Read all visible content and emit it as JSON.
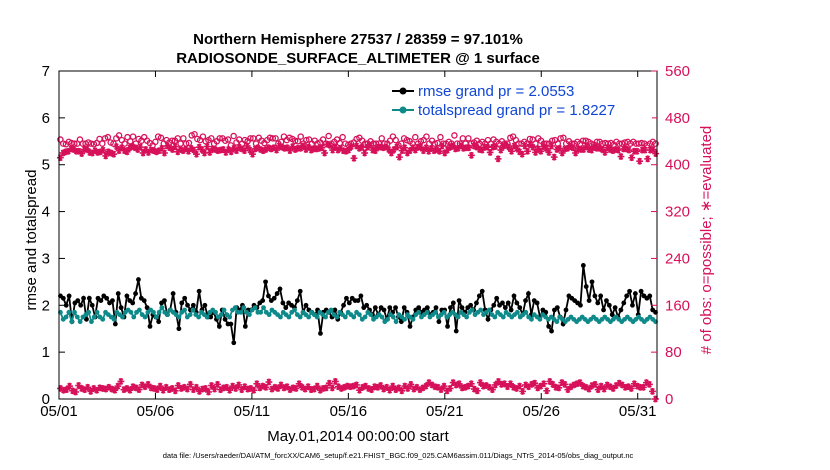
{
  "colors": {
    "rmse": "#000000",
    "spread": "#0f8a8a",
    "obs": "#d6115a",
    "legend_text": "#1046d6",
    "background": "#ffffff"
  },
  "chart_data": {
    "type": "line",
    "title_line1": "Northern Hemisphere 27537 / 28359 = 97.101%",
    "title_line2": "RADIOSONDE_SURFACE_ALTIMETER @ 1 surface",
    "xlabel": "May.01,2014 00:00:00 start",
    "ylabel_left": "rmse and totalspread",
    "ylabel_right": "# of obs: o=possible; ∗=evaluated",
    "footer": "data file: /Users/raeder/DAI/ATM_forcXX/CAM6_setup/f.e21.FHIST_BGC.f09_025.CAM6assim.011/Diags_NTrS_2014-05/obs_diag_output.nc",
    "x_tick_labels": [
      "05/01",
      "05/06",
      "05/11",
      "05/16",
      "05/21",
      "05/26",
      "05/31"
    ],
    "x_tick_days": [
      1,
      6,
      11,
      16,
      21,
      26,
      31
    ],
    "xlim": [
      1,
      32
    ],
    "ylim_left": [
      0,
      7
    ],
    "yticks_left": [
      "0",
      "1",
      "2",
      "3",
      "4",
      "5",
      "6",
      "7"
    ],
    "ylim_right": [
      0,
      560
    ],
    "yticks_right": [
      "0",
      "80",
      "160",
      "240",
      "320",
      "400",
      "480",
      "560"
    ],
    "legend": {
      "location": "top-right",
      "entries": [
        "rmse grand pr = 2.0553",
        "totalspread grand pr = 1.8227"
      ]
    },
    "series": [
      {
        "name": "rmse",
        "axis": "left",
        "values": [
          2.2,
          2.15,
          2.0,
          2.2,
          1.65,
          2.05,
          2.1,
          2.0,
          2.15,
          1.7,
          2.15,
          2.0,
          1.75,
          2.15,
          2.1,
          2.2,
          2.15,
          2.05,
          2.1,
          1.6,
          2.25,
          1.95,
          1.75,
          2.2,
          2.1,
          2.05,
          2.25,
          2.55,
          2.15,
          2.1,
          1.95,
          1.55,
          1.8,
          1.75,
          1.65,
          2.05,
          2.1,
          1.8,
          1.9,
          2.25,
          1.85,
          1.5,
          2.05,
          2.15,
          2.0,
          1.9,
          2.0,
          1.85,
          2.3,
          1.9,
          2.0,
          1.75,
          1.75,
          1.85,
          1.7,
          1.55,
          1.9,
          1.7,
          1.6,
          1.6,
          1.2,
          1.95,
          1.9,
          2.0,
          1.55,
          1.9,
          1.9,
          2.0,
          1.95,
          2.05,
          2.1,
          2.5,
          2.2,
          2.1,
          2.15,
          2.25,
          2.35,
          2.05,
          1.95,
          2.05,
          2.0,
          1.95,
          2.1,
          2.3,
          1.85,
          2.0,
          1.9,
          1.85,
          1.8,
          1.9,
          1.4,
          1.85,
          1.9,
          1.85,
          1.75,
          1.9,
          1.7,
          1.85,
          2.0,
          2.15,
          2.05,
          2.15,
          2.1,
          2.1,
          2.2,
          1.95,
          2.0,
          1.9,
          1.8,
          1.95,
          1.8,
          1.95,
          1.9,
          1.7,
          1.95,
          1.85,
          1.95,
          1.75,
          1.65,
          1.95,
          1.85,
          1.55,
          1.75,
          1.9,
          1.95,
          1.85,
          1.9,
          1.95,
          1.8,
          1.85,
          1.95,
          1.65,
          1.9,
          1.9,
          1.55,
          1.95,
          2.05,
          1.45,
          2.1,
          1.95,
          1.85,
          1.95,
          2.0,
          1.9,
          2.05,
          2.2,
          2.3,
          1.9,
          1.7,
          1.9,
          2.0,
          2.15,
          2.0,
          2.05,
          1.95,
          2.05,
          1.9,
          2.2,
          2.05,
          1.95,
          1.8,
          2.1,
          2.25,
          1.8,
          2.1,
          2.05,
          1.75,
          1.9,
          1.85,
          1.55,
          1.45,
          1.9,
          1.95,
          1.75,
          1.6,
          1.9,
          2.2,
          2.15,
          2.1,
          2.05,
          2.0,
          2.85,
          2.4,
          2.1,
          2.5,
          2.2,
          2.05,
          2.2,
          1.9,
          2.1,
          2.0,
          1.8,
          1.95,
          1.75,
          1.9,
          2.05,
          2.2,
          2.3,
          2.0,
          2.25,
          1.8,
          2.3,
          2.2,
          2.15,
          2.2,
          1.9,
          1.85
        ],
        "marker": "filled-circle"
      },
      {
        "name": "totalspread",
        "axis": "left",
        "values": [
          1.85,
          1.7,
          1.75,
          1.85,
          1.65,
          1.85,
          1.75,
          1.65,
          1.75,
          1.8,
          1.85,
          1.65,
          1.75,
          1.85,
          1.75,
          1.7,
          1.85,
          1.8,
          1.75,
          1.7,
          1.85,
          1.8,
          1.75,
          1.85,
          1.9,
          1.85,
          1.75,
          1.85,
          1.9,
          1.8,
          1.75,
          1.85,
          1.9,
          1.85,
          1.75,
          1.85,
          1.95,
          1.85,
          1.8,
          1.9,
          1.85,
          1.8,
          1.75,
          1.85,
          1.9,
          1.75,
          1.8,
          1.9,
          1.8,
          1.75,
          1.85,
          1.8,
          1.75,
          1.85,
          1.9,
          1.85,
          1.75,
          1.8,
          1.9,
          1.8,
          1.75,
          1.9,
          1.95,
          1.85,
          1.85,
          1.95,
          1.85,
          1.8,
          1.9,
          1.95,
          1.85,
          1.85,
          1.95,
          1.85,
          1.8,
          1.9,
          1.85,
          1.8,
          1.75,
          1.85,
          1.8,
          1.75,
          1.85,
          1.9,
          1.8,
          1.75,
          1.85,
          1.8,
          1.75,
          1.85,
          1.8,
          1.75,
          1.85,
          1.8,
          1.75,
          1.85,
          1.9,
          1.8,
          1.75,
          1.85,
          1.8,
          1.75,
          1.85,
          1.8,
          1.75,
          1.85,
          1.8,
          1.7,
          1.75,
          1.85,
          1.8,
          1.7,
          1.75,
          1.8,
          1.75,
          1.65,
          1.7,
          1.8,
          1.75,
          1.65,
          1.8,
          1.75,
          1.7,
          1.8,
          1.75,
          1.7,
          1.8,
          1.85,
          1.75,
          1.8,
          1.85,
          1.75,
          1.8,
          1.85,
          1.75,
          1.8,
          1.85,
          1.75,
          1.8,
          1.85,
          1.8,
          1.75,
          1.85,
          1.8,
          1.75,
          1.85,
          1.9,
          1.8,
          1.85,
          1.9,
          1.8,
          1.85,
          1.9,
          1.8,
          1.75,
          1.85,
          1.8,
          1.75,
          1.85,
          1.8,
          1.75,
          1.8,
          1.85,
          1.75,
          1.8,
          1.85,
          1.75,
          1.7,
          1.8,
          1.75,
          1.7,
          1.8,
          1.75,
          1.7,
          1.75,
          1.7,
          1.65,
          1.75,
          1.7,
          1.65,
          1.7,
          1.75,
          1.7,
          1.65,
          1.7,
          1.75,
          1.7,
          1.65,
          1.7,
          1.75,
          1.7,
          1.65,
          1.7,
          1.75,
          1.7,
          1.65,
          1.7,
          1.75,
          1.7,
          1.65,
          1.7,
          1.75,
          1.7,
          1.65,
          1.7,
          1.75,
          1.7,
          1.65,
          1.7,
          1.75,
          1.7,
          1.65
        ],
        "marker": "filled-circle"
      },
      {
        "name": "obs possible",
        "axis": "right",
        "values": [
          443,
          436,
          435,
          439,
          437,
          436,
          436,
          443,
          436,
          436,
          438,
          436,
          435,
          437,
          444,
          436,
          445,
          447,
          438,
          436,
          445,
          450,
          442,
          436,
          447,
          440,
          448,
          436,
          444,
          441,
          447,
          441,
          437,
          433,
          439,
          448,
          446,
          436,
          442,
          438,
          441,
          441,
          445,
          436,
          445,
          436,
          437,
          450,
          452,
          444,
          442,
          448,
          440,
          442,
          445,
          436,
          440,
          445,
          445,
          441,
          443,
          433,
          449,
          438,
          443,
          436,
          442,
          440,
          445,
          445,
          436,
          446,
          441,
          437,
          442,
          446,
          445,
          445,
          436,
          439,
          448,
          442,
          446,
          444,
          441,
          440,
          448,
          436,
          442,
          443,
          436,
          441,
          436,
          438,
          443,
          436,
          449,
          436,
          439,
          443,
          437,
          447,
          436,
          434,
          436,
          438,
          444,
          446,
          441,
          436,
          436,
          440,
          436,
          436,
          436,
          445,
          436,
          436,
          441,
          448,
          442,
          433,
          436,
          445,
          442,
          440,
          436,
          447,
          436,
          440,
          442,
          448,
          436,
          441,
          436,
          437,
          447,
          436,
          436,
          439,
          436,
          450,
          436,
          436,
          445,
          436,
          445,
          436,
          438,
          441,
          436,
          439,
          436,
          442,
          436,
          443,
          439,
          436,
          440,
          436,
          436,
          446,
          448,
          442,
          436,
          436,
          439,
          436,
          444,
          443,
          436,
          445,
          441,
          436,
          436,
          436,
          441,
          442,
          436,
          445,
          446,
          436,
          440,
          436,
          436,
          439,
          436,
          441,
          441,
          439,
          436,
          434,
          439,
          439,
          436,
          437,
          436,
          437,
          434,
          439,
          436,
          436,
          438,
          439,
          436,
          439,
          436,
          436,
          437,
          436,
          433,
          436,
          439,
          436
        ],
        "marker": "open-circle"
      },
      {
        "name": "obs evaluated",
        "axis": "right",
        "values": [
          412,
          420,
          422,
          423,
          427,
          426,
          423,
          423,
          419,
          426,
          427,
          421,
          420,
          424,
          421,
          422,
          425,
          415,
          422,
          420,
          418,
          431,
          424,
          429,
          424,
          422,
          429,
          431,
          429,
          426,
          430,
          420,
          426,
          421,
          425,
          424,
          422,
          424,
          428,
          420,
          432,
          429,
          426,
          431,
          422,
          426,
          424,
          427,
          423,
          428,
          425,
          418,
          430,
          426,
          420,
          431,
          421,
          427,
          426,
          424,
          425,
          426,
          421,
          426,
          422,
          428,
          424,
          430,
          427,
          424,
          432,
          425,
          418,
          427,
          429,
          426,
          424,
          426,
          429,
          427,
          429,
          425,
          432,
          430,
          428,
          429,
          424,
          431,
          426,
          428,
          428,
          432,
          426,
          430,
          425,
          427,
          427,
          428,
          429,
          420,
          435,
          433,
          425,
          430,
          425,
          428,
          424,
          423,
          425,
          431,
          411,
          432,
          428,
          430,
          420,
          430,
          433,
          425,
          424,
          430,
          430,
          429,
          430,
          426,
          420,
          426,
          430,
          413,
          424,
          429,
          420,
          424,
          429,
          425,
          430,
          430,
          424,
          429,
          423,
          428,
          424,
          426,
          423,
          432,
          420,
          425,
          430,
          432,
          427,
          428,
          432,
          428,
          429,
          429,
          416,
          432,
          430,
          426,
          425,
          430,
          430,
          421,
          430,
          431,
          410,
          425,
          432,
          433,
          430,
          423,
          432,
          428,
          422,
          418,
          432,
          423,
          434,
          430,
          421,
          427,
          423,
          431,
          428,
          421,
          432,
          413,
          426,
          428,
          420,
          427,
          428,
          431,
          429,
          420,
          427,
          426,
          426,
          432,
          426,
          425,
          430,
          428,
          428,
          426,
          421,
          429,
          426,
          424,
          426,
          425,
          414,
          427,
          427,
          425,
          412,
          423,
          423,
          406,
          425,
          425,
          410,
          425,
          426,
          419
        ],
        "marker": "asterisk"
      },
      {
        "name": "obs bottom",
        "axis": "right",
        "values": [
          18,
          15,
          16,
          22,
          14,
          12,
          23,
          18,
          16,
          20,
          13,
          18,
          15,
          19,
          18,
          17,
          20,
          17,
          15,
          22,
          30,
          16,
          18,
          15,
          21,
          19,
          16,
          24,
          21,
          25,
          19,
          18,
          16,
          22,
          15,
          20,
          16,
          18,
          14,
          23,
          18,
          20,
          17,
          25,
          16,
          20,
          13,
          17,
          18,
          12,
          23,
          17,
          25,
          16,
          19,
          20,
          15,
          22,
          18,
          24,
          16,
          21,
          17,
          18,
          15,
          26,
          19,
          22,
          20,
          29,
          17,
          20,
          18,
          24,
          19,
          21,
          16,
          19,
          18,
          26,
          20,
          17,
          21,
          16,
          17,
          22,
          15,
          18,
          19,
          27,
          19,
          30,
          21,
          18,
          20,
          22,
          21,
          22,
          24,
          15,
          20,
          22,
          18,
          16,
          21,
          20,
          23,
          17,
          20,
          15,
          22,
          16,
          19,
          14,
          22,
          18,
          25,
          17,
          20,
          16,
          19,
          22,
          28,
          24,
          21,
          20,
          16,
          22,
          14,
          18,
          28,
          24,
          26,
          19,
          20,
          22,
          26,
          17,
          14,
          28,
          22,
          23,
          20,
          16,
          24,
          30,
          25,
          26,
          21,
          26,
          20,
          18,
          22,
          13,
          24,
          21,
          25,
          27,
          19,
          22,
          26,
          14,
          30,
          25,
          20,
          19,
          28,
          25,
          16,
          21,
          24,
          26,
          28,
          22,
          20,
          17,
          23,
          25,
          16,
          22,
          17,
          24,
          21,
          18,
          23,
          27,
          24,
          20,
          21,
          18,
          26,
          22,
          20,
          20,
          28,
          25,
          13,
          0
        ]
      }
    ]
  }
}
